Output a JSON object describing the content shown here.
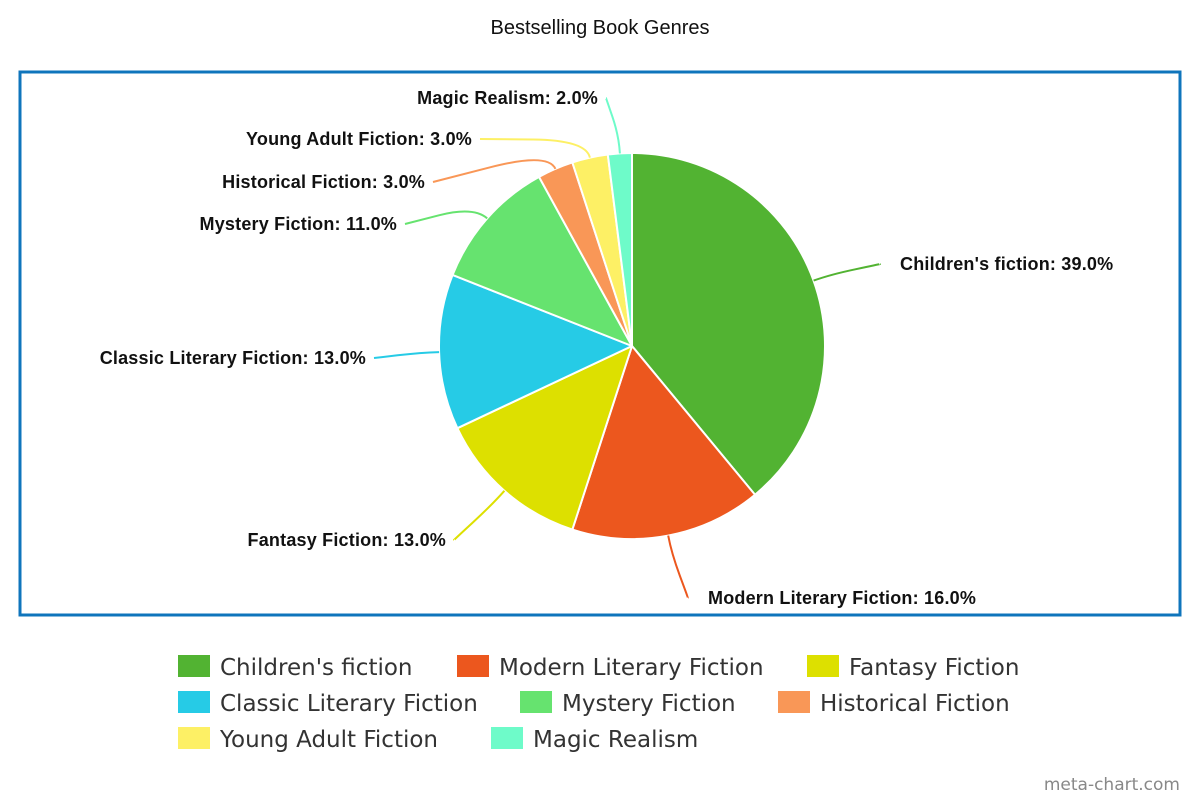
{
  "chart_data": {
    "type": "pie",
    "title": "Bestselling Book Genres",
    "unit": "%",
    "slices": [
      {
        "label": "Children's fiction",
        "value": 39.0,
        "display": "Children's fiction: 39.0%",
        "color": "#52b332"
      },
      {
        "label": "Modern Literary Fiction",
        "value": 16.0,
        "display": "Modern Literary Fiction: 16.0%",
        "color": "#ec571e"
      },
      {
        "label": "Fantasy Fiction",
        "value": 13.0,
        "display": "Fantasy Fiction: 13.0%",
        "color": "#dde000"
      },
      {
        "label": "Classic Literary Fiction",
        "value": 13.0,
        "display": "Classic Literary Fiction: 13.0%",
        "color": "#26cbe6"
      },
      {
        "label": "Mystery Fiction",
        "value": 11.0,
        "display": "Mystery Fiction: 11.0%",
        "color": "#66e36f"
      },
      {
        "label": "Historical Fiction",
        "value": 3.0,
        "display": "Historical Fiction: 3.0%",
        "color": "#f99757"
      },
      {
        "label": "Young Adult Fiction",
        "value": 3.0,
        "display": "Young Adult Fiction: 3.0%",
        "color": "#fdf065"
      },
      {
        "label": "Magic Realism",
        "value": 2.0,
        "display": "Magic Realism: 2.0%",
        "color": "#6efbc9"
      }
    ],
    "legend_position": "bottom",
    "frame_color": "#0f75bc"
  },
  "watermark": "meta-chart.com"
}
